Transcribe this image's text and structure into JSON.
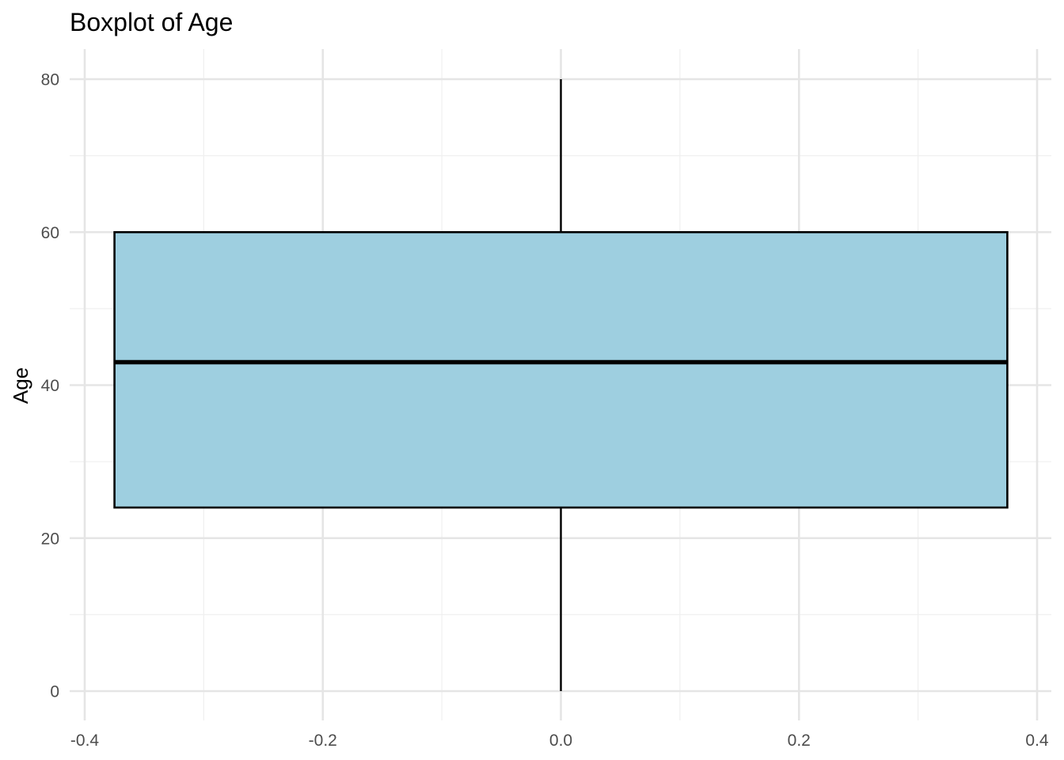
{
  "chart_data": {
    "type": "box",
    "title": "Boxplot of Age",
    "xlabel": "",
    "ylabel": "Age",
    "xlim": [
      -0.4,
      0.4
    ],
    "ylim": [
      0,
      80
    ],
    "x_ticks": [
      -0.4,
      -0.2,
      0.0,
      0.2,
      0.4
    ],
    "x_tick_labels": [
      "-0.4",
      "-0.2",
      "0.0",
      "0.2",
      "0.4"
    ],
    "y_ticks": [
      0,
      20,
      40,
      60,
      80
    ],
    "y_tick_labels": [
      "0",
      "20",
      "40",
      "60",
      "80"
    ],
    "grid": true,
    "legend": "none",
    "boxes": [
      {
        "x": 0.0,
        "box_halfwidth": 0.375,
        "min": 0,
        "q1": 24,
        "median": 43,
        "q3": 60,
        "max": 80
      }
    ],
    "colors": {
      "box_fill": "#9ecfe0",
      "box_stroke": "#000000",
      "grid_major": "#e5e5e5",
      "grid_minor": "#f0f0f0",
      "tick_text": "#4d4d4d"
    }
  }
}
